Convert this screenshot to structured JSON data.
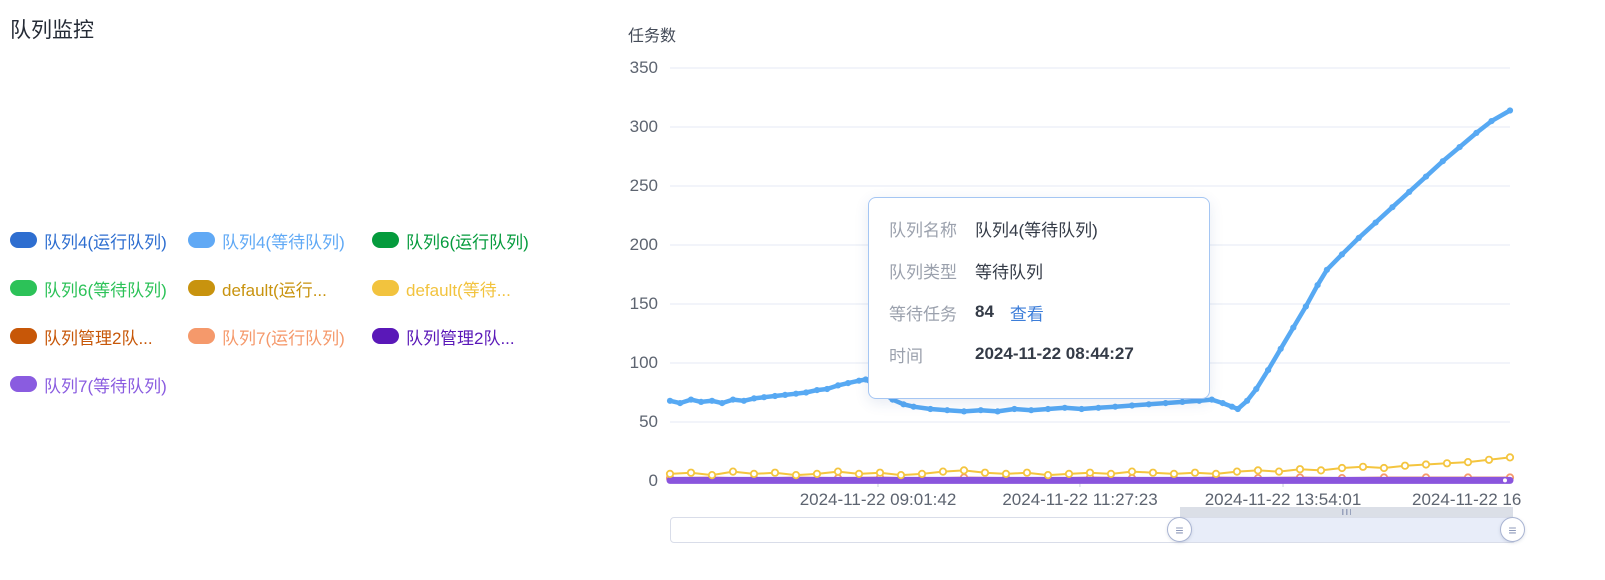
{
  "page": {
    "title": "队列监控"
  },
  "legend": {
    "items": [
      {
        "label": "队列4(运行队列)",
        "color": "#2e6ed0"
      },
      {
        "label": "队列4(等待队列)",
        "color": "#60a9f5"
      },
      {
        "label": "队列6(运行队列)",
        "color": "#059b3d"
      },
      {
        "label": "队列6(等待队列)",
        "color": "#2cc258"
      },
      {
        "label": "default(运行...",
        "color": "#c8930e"
      },
      {
        "label": "default(等待...",
        "color": "#f2c33e"
      },
      {
        "label": "队列管理2队...",
        "color": "#c75708"
      },
      {
        "label": "队列7(运行队列)",
        "color": "#f5996b"
      },
      {
        "label": "队列管理2队...",
        "color": "#5a18b8"
      },
      {
        "label": "队列7(等待队列)",
        "color": "#8a5ce0"
      }
    ]
  },
  "chart_data": {
    "type": "line",
    "ylabel": "任务数",
    "ylim": [
      0,
      350
    ],
    "grid": true,
    "yticks": [
      0,
      50,
      100,
      150,
      200,
      250,
      300,
      350
    ],
    "xticks": [
      {
        "label": "2024-11-22 09:01:42",
        "pos": 0.2476
      },
      {
        "label": "2024-11-22 11:27:23",
        "pos": 0.488
      },
      {
        "label": "2024-11-22 13:54:01",
        "pos": 0.7298
      },
      {
        "label": "2024-11-22 16",
        "pos": 1.0,
        "clip": true
      }
    ],
    "series": [
      {
        "name": "队列7(运行队列)",
        "color": "#f5996b",
        "width": 2,
        "dot": "hollow",
        "points": [
          [
            0,
            2.5
          ],
          [
            0.05,
            3
          ],
          [
            0.1,
            2
          ],
          [
            0.15,
            3
          ],
          [
            0.2,
            2.5
          ],
          [
            0.25,
            3
          ],
          [
            0.3,
            2
          ],
          [
            0.35,
            3
          ],
          [
            0.4,
            2.5
          ],
          [
            0.45,
            2
          ],
          [
            0.5,
            3
          ],
          [
            0.55,
            2.5
          ],
          [
            0.6,
            2
          ],
          [
            0.65,
            3
          ],
          [
            0.7,
            2.5
          ],
          [
            0.75,
            3
          ],
          [
            0.8,
            2.5
          ],
          [
            0.85,
            3
          ],
          [
            0.9,
            3
          ],
          [
            0.95,
            3
          ],
          [
            1,
            3
          ]
        ]
      },
      {
        "name": "队列7(等待队列)",
        "color": "#8a55dd",
        "width": 7,
        "dot": "end-white",
        "points": [
          [
            0,
            0.5
          ],
          [
            1,
            0.5
          ]
        ]
      },
      {
        "name": "default(等待队列)",
        "color": "#f4c53f",
        "width": 2,
        "dot": "hollow",
        "points": [
          [
            0,
            6
          ],
          [
            0.025,
            7
          ],
          [
            0.05,
            5
          ],
          [
            0.075,
            8
          ],
          [
            0.1,
            6
          ],
          [
            0.125,
            7
          ],
          [
            0.15,
            5
          ],
          [
            0.175,
            6
          ],
          [
            0.2,
            8
          ],
          [
            0.225,
            6
          ],
          [
            0.25,
            7
          ],
          [
            0.275,
            5
          ],
          [
            0.3,
            6
          ],
          [
            0.325,
            8
          ],
          [
            0.35,
            9
          ],
          [
            0.375,
            7
          ],
          [
            0.4,
            6
          ],
          [
            0.425,
            7
          ],
          [
            0.45,
            5
          ],
          [
            0.475,
            6
          ],
          [
            0.5,
            7
          ],
          [
            0.525,
            6
          ],
          [
            0.55,
            8
          ],
          [
            0.575,
            7
          ],
          [
            0.6,
            6
          ],
          [
            0.625,
            7
          ],
          [
            0.65,
            6
          ],
          [
            0.675,
            8
          ],
          [
            0.7,
            9
          ],
          [
            0.725,
            8
          ],
          [
            0.75,
            10
          ],
          [
            0.775,
            9
          ],
          [
            0.8,
            11
          ],
          [
            0.825,
            12
          ],
          [
            0.85,
            11
          ],
          [
            0.875,
            13
          ],
          [
            0.9,
            14
          ],
          [
            0.925,
            15
          ],
          [
            0.95,
            16
          ],
          [
            0.975,
            18
          ],
          [
            1,
            20
          ]
        ]
      },
      {
        "name": "队列4(等待队列)",
        "color": "#57a9f3",
        "width": 4.5,
        "dot": "solid",
        "points": [
          [
            0,
            68
          ],
          [
            0.012,
            66
          ],
          [
            0.025,
            69
          ],
          [
            0.037,
            67
          ],
          [
            0.05,
            68
          ],
          [
            0.062,
            66
          ],
          [
            0.075,
            69
          ],
          [
            0.088,
            68
          ],
          [
            0.1,
            70
          ],
          [
            0.112,
            71
          ],
          [
            0.125,
            72
          ],
          [
            0.137,
            73
          ],
          [
            0.15,
            74
          ],
          [
            0.162,
            75
          ],
          [
            0.175,
            77
          ],
          [
            0.187,
            78
          ],
          [
            0.2,
            81
          ],
          [
            0.212,
            83
          ],
          [
            0.225,
            85
          ],
          [
            0.233,
            86
          ],
          [
            0.243,
            82
          ],
          [
            0.253,
            75
          ],
          [
            0.265,
            69
          ],
          [
            0.278,
            65
          ],
          [
            0.29,
            63
          ],
          [
            0.31,
            61
          ],
          [
            0.33,
            60
          ],
          [
            0.35,
            59
          ],
          [
            0.37,
            60
          ],
          [
            0.39,
            59
          ],
          [
            0.41,
            61
          ],
          [
            0.43,
            60
          ],
          [
            0.45,
            61
          ],
          [
            0.47,
            62
          ],
          [
            0.49,
            61
          ],
          [
            0.51,
            62
          ],
          [
            0.53,
            63
          ],
          [
            0.55,
            64
          ],
          [
            0.57,
            65
          ],
          [
            0.59,
            66
          ],
          [
            0.61,
            67
          ],
          [
            0.63,
            68
          ],
          [
            0.645,
            69
          ],
          [
            0.658,
            66
          ],
          [
            0.669,
            63
          ],
          [
            0.676,
            61
          ],
          [
            0.687,
            68
          ],
          [
            0.698,
            78
          ],
          [
            0.712,
            94
          ],
          [
            0.727,
            112
          ],
          [
            0.742,
            130
          ],
          [
            0.757,
            148
          ],
          [
            0.771,
            166
          ],
          [
            0.782,
            179
          ],
          [
            0.8,
            192
          ],
          [
            0.82,
            206
          ],
          [
            0.84,
            219
          ],
          [
            0.86,
            232
          ],
          [
            0.88,
            245
          ],
          [
            0.9,
            258
          ],
          [
            0.92,
            271
          ],
          [
            0.94,
            283
          ],
          [
            0.96,
            295
          ],
          [
            0.978,
            305
          ],
          [
            1,
            314
          ]
        ]
      }
    ]
  },
  "tooltip": {
    "rows": [
      {
        "label": "队列名称",
        "value": "队列4(等待队列)",
        "bold": false
      },
      {
        "label": "队列类型",
        "value": "等待队列",
        "bold": false
      },
      {
        "label": "等待任务",
        "value": "84",
        "bold": true,
        "link": "查看"
      },
      {
        "label": "时间",
        "value": "2024-11-22 08:44:27",
        "bold": true
      }
    ]
  },
  "datazoom": {
    "handle_icon": "≡",
    "range_percent": [
      61,
      100
    ]
  }
}
